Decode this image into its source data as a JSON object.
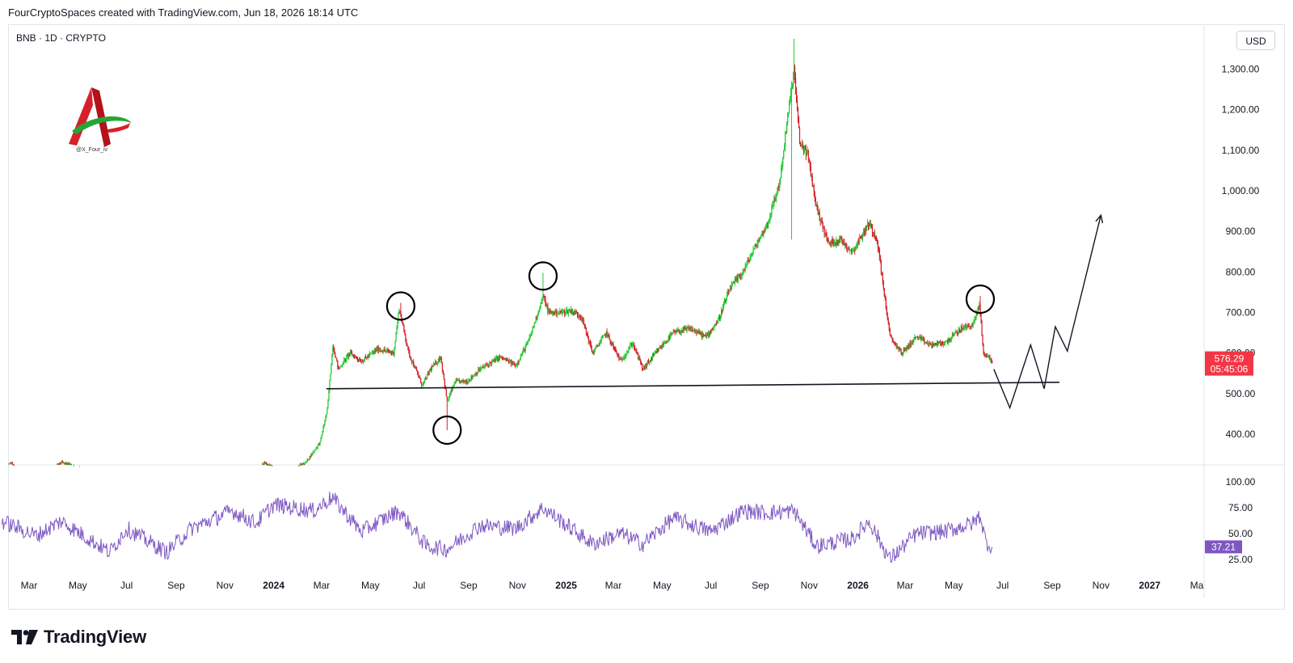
{
  "header": {
    "text": "FourCryptoSpaces created with TradingView.com, Jun 18, 2026 18:14 UTC"
  },
  "symbol": {
    "text": "BNB · 1D · CRYPTO"
  },
  "currency": "USD",
  "logo": {
    "caption": "@X_Four_iv"
  },
  "footer": {
    "brand": "TradingView"
  },
  "colors": {
    "up": "#26c936",
    "down": "#d6212a",
    "rsi": "#7e57c2",
    "price_badge": "#f23645",
    "rsi_badge": "#7e57c2",
    "annotation": "#131722"
  },
  "chart_data": [
    {
      "type": "candlestick",
      "title": "",
      "series_name": "BNB",
      "ylim": [
        320,
        1400
      ],
      "y_ticks": [
        400,
        500,
        600,
        700,
        800,
        900,
        1000,
        1100,
        1200,
        1300
      ],
      "y_tick_labels": [
        "400.00",
        "500.00",
        "600.00",
        "700.00",
        "800.00",
        "900.00",
        "1,000.00",
        "1,100.00",
        "1,200.00",
        "1,300.00"
      ],
      "last_price": "576.29",
      "countdown": "05:45:06",
      "anchors": [
        {
          "date": "2023-01-26",
          "close": 305
        },
        {
          "date": "2023-02-06",
          "close": 330
        },
        {
          "date": "2023-02-18",
          "close": 300
        },
        {
          "date": "2023-03-10",
          "close": 290
        },
        {
          "date": "2023-04-10",
          "close": 330
        },
        {
          "date": "2023-05-20",
          "close": 310
        },
        {
          "date": "2023-07-10",
          "close": 240
        },
        {
          "date": "2023-08-20",
          "close": 215
        },
        {
          "date": "2023-10-10",
          "close": 215
        },
        {
          "date": "2023-11-20",
          "close": 250
        },
        {
          "date": "2023-12-20",
          "close": 330
        },
        {
          "date": "2024-01-15",
          "close": 305
        },
        {
          "date": "2024-02-10",
          "close": 330
        },
        {
          "date": "2024-02-28",
          "close": 380
        },
        {
          "date": "2024-03-08",
          "close": 460
        },
        {
          "date": "2024-03-15",
          "close": 620
        },
        {
          "date": "2024-03-22",
          "close": 560
        },
        {
          "date": "2024-04-05",
          "close": 600
        },
        {
          "date": "2024-04-20",
          "close": 580
        },
        {
          "date": "2024-05-10",
          "close": 610
        },
        {
          "date": "2024-05-30",
          "close": 600
        },
        {
          "date": "2024-06-06",
          "close": 710
        },
        {
          "date": "2024-06-18",
          "close": 600
        },
        {
          "date": "2024-07-05",
          "close": 520
        },
        {
          "date": "2024-07-15",
          "close": 560
        },
        {
          "date": "2024-07-28",
          "close": 590
        },
        {
          "date": "2024-08-05",
          "close": 480
        },
        {
          "date": "2024-08-15",
          "close": 530
        },
        {
          "date": "2024-08-30",
          "close": 530
        },
        {
          "date": "2024-09-15",
          "close": 560
        },
        {
          "date": "2024-10-10",
          "close": 590
        },
        {
          "date": "2024-10-30",
          "close": 570
        },
        {
          "date": "2024-11-15",
          "close": 630
        },
        {
          "date": "2024-12-03",
          "close": 740
        },
        {
          "date": "2024-12-10",
          "close": 700
        },
        {
          "date": "2024-12-25",
          "close": 700
        },
        {
          "date": "2025-01-07",
          "close": 705
        },
        {
          "date": "2025-01-20",
          "close": 690
        },
        {
          "date": "2025-02-03",
          "close": 600
        },
        {
          "date": "2025-02-20",
          "close": 650
        },
        {
          "date": "2025-03-10",
          "close": 580
        },
        {
          "date": "2025-03-25",
          "close": 625
        },
        {
          "date": "2025-04-07",
          "close": 560
        },
        {
          "date": "2025-04-25",
          "close": 605
        },
        {
          "date": "2025-05-15",
          "close": 650
        },
        {
          "date": "2025-06-05",
          "close": 660
        },
        {
          "date": "2025-06-25",
          "close": 640
        },
        {
          "date": "2025-07-10",
          "close": 680
        },
        {
          "date": "2025-07-25",
          "close": 760
        },
        {
          "date": "2025-08-10",
          "close": 800
        },
        {
          "date": "2025-08-25",
          "close": 860
        },
        {
          "date": "2025-09-10",
          "close": 920
        },
        {
          "date": "2025-09-25",
          "close": 1020
        },
        {
          "date": "2025-10-05",
          "close": 1180
        },
        {
          "date": "2025-10-13",
          "close": 1300
        },
        {
          "date": "2025-10-20",
          "close": 1120
        },
        {
          "date": "2025-10-30",
          "close": 1090
        },
        {
          "date": "2025-11-10",
          "close": 960
        },
        {
          "date": "2025-11-25",
          "close": 870
        },
        {
          "date": "2025-12-10",
          "close": 880
        },
        {
          "date": "2025-12-25",
          "close": 850
        },
        {
          "date": "2026-01-15",
          "close": 920
        },
        {
          "date": "2026-01-25",
          "close": 880
        },
        {
          "date": "2026-02-02",
          "close": 760
        },
        {
          "date": "2026-02-10",
          "close": 640
        },
        {
          "date": "2026-02-25",
          "close": 600
        },
        {
          "date": "2026-03-15",
          "close": 640
        },
        {
          "date": "2026-04-01",
          "close": 620
        },
        {
          "date": "2026-04-20",
          "close": 625
        },
        {
          "date": "2026-05-10",
          "close": 660
        },
        {
          "date": "2026-05-25",
          "close": 670
        },
        {
          "date": "2026-06-02",
          "close": 720
        },
        {
          "date": "2026-06-07",
          "close": 600
        },
        {
          "date": "2026-06-14",
          "close": 590
        },
        {
          "date": "2026-06-18",
          "close": 576
        }
      ],
      "support_line": [
        {
          "date": "2024-03-07",
          "price": 512
        },
        {
          "date": "2026-09-10",
          "price": 528
        }
      ],
      "projection": [
        {
          "date": "2026-06-20",
          "price": 560
        },
        {
          "date": "2026-07-10",
          "price": 465
        },
        {
          "date": "2026-08-05",
          "price": 620
        },
        {
          "date": "2026-08-22",
          "price": 512
        },
        {
          "date": "2026-09-05",
          "price": 665
        },
        {
          "date": "2026-09-20",
          "price": 605
        },
        {
          "date": "2026-11-01",
          "price": 940
        }
      ],
      "circled_points": [
        {
          "date": "2024-06-08",
          "price": 716
        },
        {
          "date": "2024-08-05",
          "price": 410
        },
        {
          "date": "2024-12-03",
          "price": 790
        },
        {
          "date": "2026-06-03",
          "price": 733
        }
      ]
    },
    {
      "type": "line",
      "series_name": "RSI",
      "ylim": [
        8,
        105
      ],
      "y_ticks": [
        25,
        50,
        75,
        100
      ],
      "y_tick_labels": [
        "25.00",
        "50.00",
        "75.00",
        "100.00"
      ],
      "last_value": "37.21",
      "anchors": [
        {
          "date": "2023-01-26",
          "value": 62
        },
        {
          "date": "2023-03-10",
          "value": 48
        },
        {
          "date": "2023-04-10",
          "value": 62
        },
        {
          "date": "2023-06-10",
          "value": 32
        },
        {
          "date": "2023-07-01",
          "value": 55
        },
        {
          "date": "2023-08-20",
          "value": 32
        },
        {
          "date": "2023-09-20",
          "value": 55
        },
        {
          "date": "2023-11-10",
          "value": 72
        },
        {
          "date": "2023-12-10",
          "value": 60
        },
        {
          "date": "2024-01-01",
          "value": 78
        },
        {
          "date": "2024-02-20",
          "value": 72
        },
        {
          "date": "2024-03-14",
          "value": 85
        },
        {
          "date": "2024-04-20",
          "value": 52
        },
        {
          "date": "2024-06-05",
          "value": 72
        },
        {
          "date": "2024-07-10",
          "value": 38
        },
        {
          "date": "2024-08-05",
          "value": 35
        },
        {
          "date": "2024-09-15",
          "value": 58
        },
        {
          "date": "2024-10-30",
          "value": 55
        },
        {
          "date": "2024-12-03",
          "value": 75
        },
        {
          "date": "2025-02-03",
          "value": 40
        },
        {
          "date": "2025-03-10",
          "value": 50
        },
        {
          "date": "2025-04-07",
          "value": 40
        },
        {
          "date": "2025-05-15",
          "value": 65
        },
        {
          "date": "2025-07-01",
          "value": 52
        },
        {
          "date": "2025-08-10",
          "value": 72
        },
        {
          "date": "2025-09-10",
          "value": 70
        },
        {
          "date": "2025-10-13",
          "value": 72
        },
        {
          "date": "2025-11-10",
          "value": 38
        },
        {
          "date": "2025-12-25",
          "value": 45
        },
        {
          "date": "2026-01-15",
          "value": 62
        },
        {
          "date": "2026-02-10",
          "value": 25
        },
        {
          "date": "2026-03-15",
          "value": 50
        },
        {
          "date": "2026-04-20",
          "value": 52
        },
        {
          "date": "2026-05-25",
          "value": 60
        },
        {
          "date": "2026-06-03",
          "value": 68
        },
        {
          "date": "2026-06-10",
          "value": 42
        },
        {
          "date": "2026-06-18",
          "value": 37
        }
      ]
    }
  ],
  "x_axis": {
    "ticks": [
      {
        "date": "2023-03-01",
        "label": "Mar",
        "bold": false
      },
      {
        "date": "2023-05-01",
        "label": "May",
        "bold": false
      },
      {
        "date": "2023-07-01",
        "label": "Jul",
        "bold": false
      },
      {
        "date": "2023-09-01",
        "label": "Sep",
        "bold": false
      },
      {
        "date": "2023-11-01",
        "label": "Nov",
        "bold": false
      },
      {
        "date": "2024-01-01",
        "label": "2024",
        "bold": true
      },
      {
        "date": "2024-03-01",
        "label": "Mar",
        "bold": false
      },
      {
        "date": "2024-05-01",
        "label": "May",
        "bold": false
      },
      {
        "date": "2024-07-01",
        "label": "Jul",
        "bold": false
      },
      {
        "date": "2024-09-01",
        "label": "Sep",
        "bold": false
      },
      {
        "date": "2024-11-01",
        "label": "Nov",
        "bold": false
      },
      {
        "date": "2025-01-01",
        "label": "2025",
        "bold": true
      },
      {
        "date": "2025-03-01",
        "label": "Mar",
        "bold": false
      },
      {
        "date": "2025-05-01",
        "label": "May",
        "bold": false
      },
      {
        "date": "2025-07-01",
        "label": "Jul",
        "bold": false
      },
      {
        "date": "2025-09-01",
        "label": "Sep",
        "bold": false
      },
      {
        "date": "2025-11-01",
        "label": "Nov",
        "bold": false
      },
      {
        "date": "2026-01-01",
        "label": "2026",
        "bold": true
      },
      {
        "date": "2026-03-01",
        "label": "Mar",
        "bold": false
      },
      {
        "date": "2026-05-01",
        "label": "May",
        "bold": false
      },
      {
        "date": "2026-07-01",
        "label": "Jul",
        "bold": false
      },
      {
        "date": "2026-09-01",
        "label": "Sep",
        "bold": false
      },
      {
        "date": "2026-11-01",
        "label": "Nov",
        "bold": false
      },
      {
        "date": "2027-01-01",
        "label": "2027",
        "bold": true
      },
      {
        "date": "2027-03-01",
        "label": "Ma",
        "bold": false
      }
    ]
  }
}
